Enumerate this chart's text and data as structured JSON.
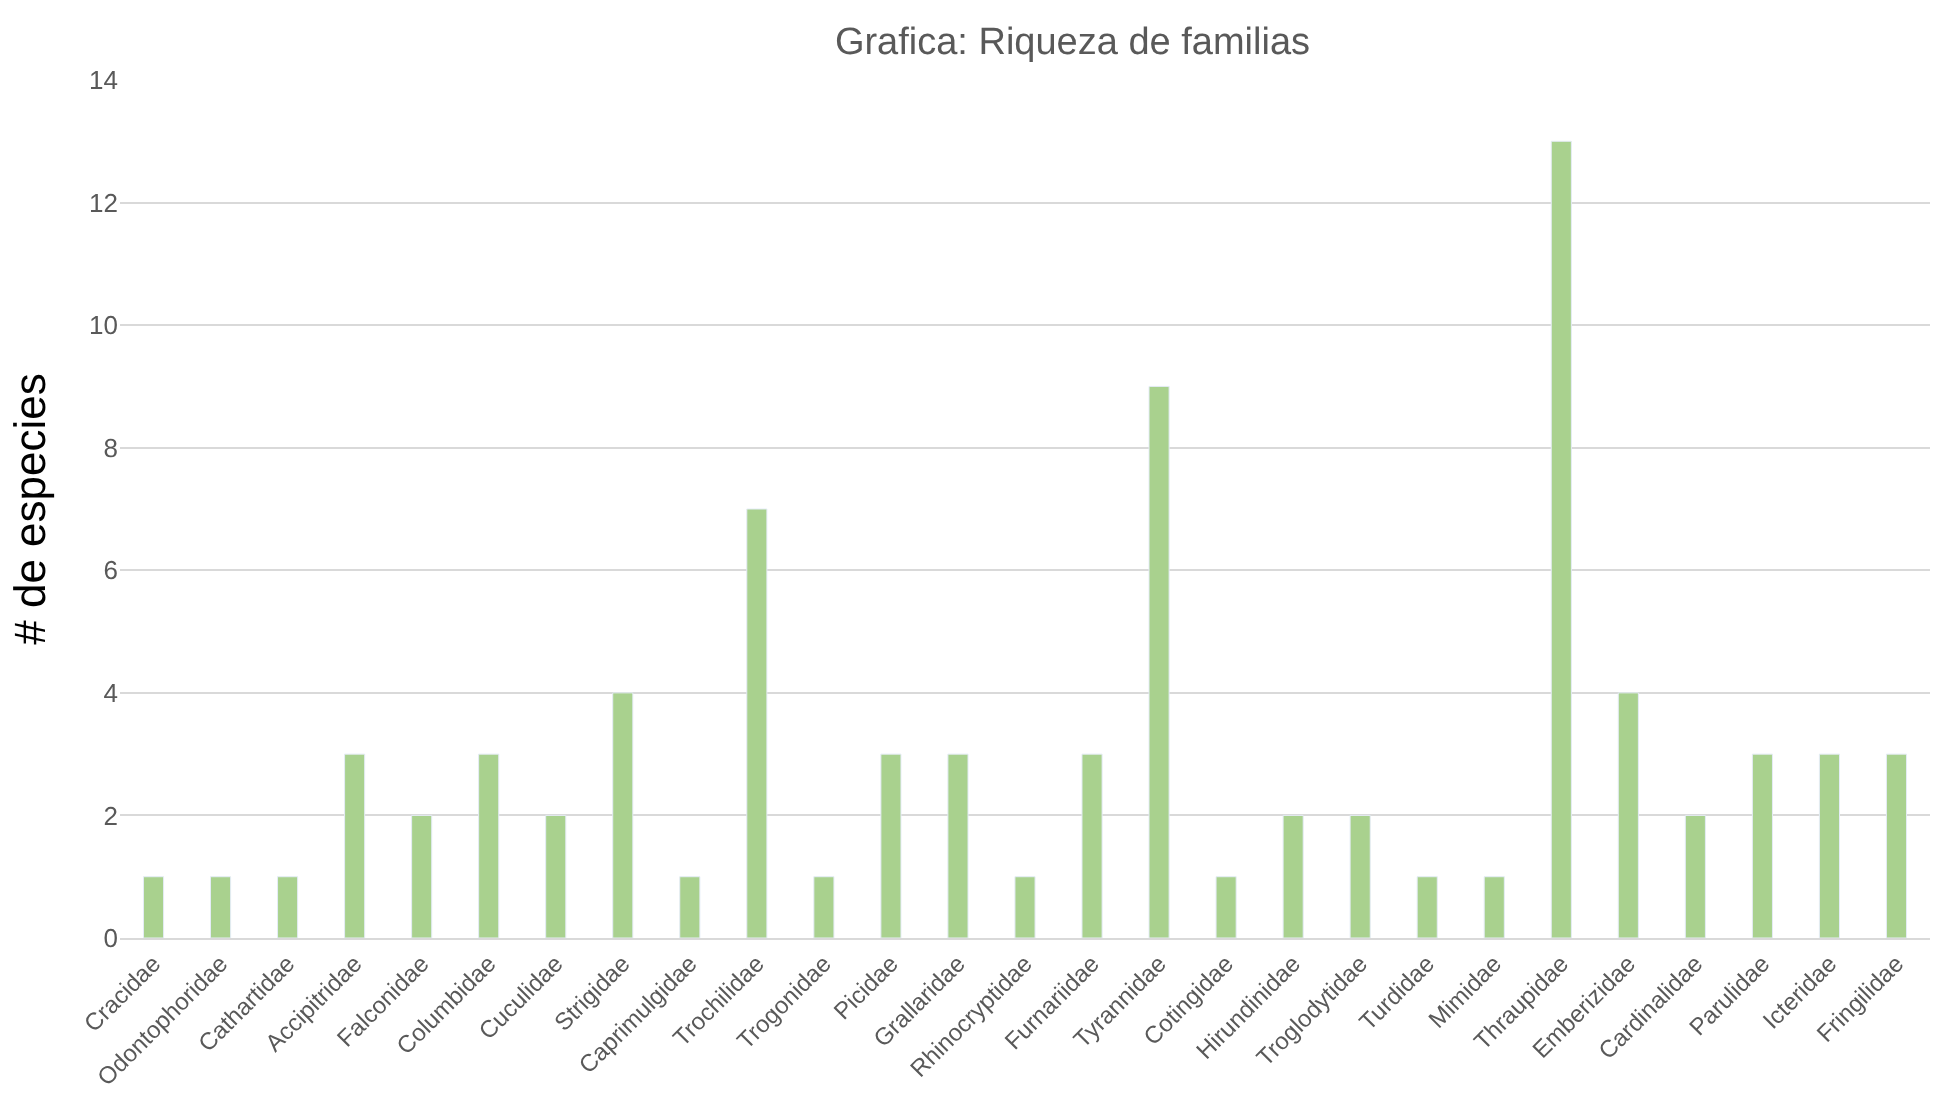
{
  "chart_data": {
    "type": "bar",
    "title": "Grafica: Riqueza de familias",
    "ylabel": "# de especies",
    "categories": [
      "Cracidae",
      "Odontophoridae",
      "Cathartidae",
      "Accipitridae",
      "Falconidae",
      "Columbidae",
      "Cuculidae",
      "Strigidae",
      "Caprimulgidae",
      "Trochilidae",
      "Trogonidae",
      "Picidae",
      "Grallaridae",
      "Rhinocryptidae",
      "Furnariidae",
      "Tyrannidae",
      "Cotingidae",
      "Hirundinidae",
      "Troglodytidae",
      "Turdidae",
      "Mimidae",
      "Thraupidae",
      "Emberizidae",
      "Cardinalidae",
      "Parulidae",
      "Icteridae",
      "Fringilidae"
    ],
    "values": [
      1,
      1,
      1,
      3,
      2,
      3,
      2,
      4,
      1,
      7,
      1,
      3,
      3,
      1,
      3,
      9,
      1,
      2,
      2,
      1,
      1,
      13,
      4,
      2,
      3,
      3,
      3
    ],
    "color": "#a9d18e",
    "ylim": [
      0,
      14
    ],
    "yticks": [
      0,
      2,
      4,
      6,
      8,
      10,
      12,
      14
    ],
    "grid": "y",
    "legend": false
  }
}
